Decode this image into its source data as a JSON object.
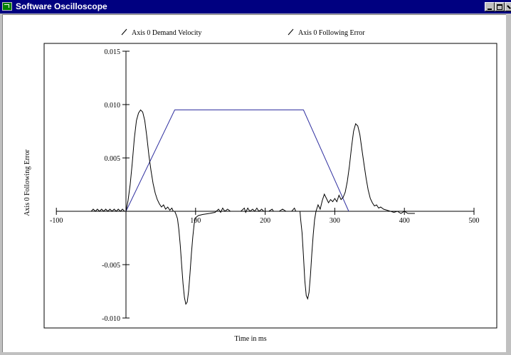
{
  "window": {
    "title": "Software Oscilloscope",
    "icon": "oscilloscope-app-icon",
    "controls": [
      "minimize-icon",
      "maximize-icon",
      "close-icon"
    ]
  },
  "chart_data": {
    "type": "line",
    "title": "",
    "xlabel": "Time in ms",
    "ylabel": "Axis 0 Following Error",
    "xlim": [
      -100,
      500
    ],
    "ylim": [
      -0.01,
      0.015
    ],
    "x_ticks": [
      -100,
      100,
      200,
      300,
      400,
      500
    ],
    "x_tick_labels": [
      "-100",
      "100",
      "200",
      "300",
      "400",
      "500"
    ],
    "y_ticks": [
      0.015,
      0.01,
      0.005,
      -0.005,
      -0.01
    ],
    "y_tick_labels": [
      "0.015",
      "0.010",
      "0.005",
      "-0.005",
      "-0.010"
    ],
    "legend_position": "top",
    "grid": false,
    "series": [
      {
        "name": "Axis 0 Demand Velocity",
        "color": "#3030a0",
        "points": [
          [
            0,
            0
          ],
          [
            70,
            0.0095
          ],
          [
            255,
            0.0095
          ],
          [
            320,
            0
          ]
        ]
      },
      {
        "name": "Axis 0 Following Error",
        "color": "#000000",
        "points": [
          [
            -50,
            0
          ],
          [
            -47,
            0.0002
          ],
          [
            -44,
            0
          ],
          [
            -41,
            0.0002
          ],
          [
            -38,
            0
          ],
          [
            -35,
            0.0002
          ],
          [
            -32,
            0
          ],
          [
            -29,
            0.0002
          ],
          [
            -26,
            0
          ],
          [
            -23,
            0.0002
          ],
          [
            -20,
            0
          ],
          [
            -17,
            0.0002
          ],
          [
            -14,
            0
          ],
          [
            -11,
            0.0002
          ],
          [
            -8,
            0
          ],
          [
            -5,
            0.0002
          ],
          [
            -2,
            0
          ],
          [
            0,
            0
          ],
          [
            3,
            0.001
          ],
          [
            6,
            0.0025
          ],
          [
            9,
            0.0045
          ],
          [
            12,
            0.0068
          ],
          [
            15,
            0.0085
          ],
          [
            18,
            0.0092
          ],
          [
            21,
            0.0095
          ],
          [
            24,
            0.0093
          ],
          [
            27,
            0.0085
          ],
          [
            30,
            0.007
          ],
          [
            33,
            0.0052
          ],
          [
            36,
            0.0038
          ],
          [
            39,
            0.0026
          ],
          [
            42,
            0.0017
          ],
          [
            45,
            0.0011
          ],
          [
            48,
            0.0007
          ],
          [
            51,
            0.0004
          ],
          [
            54,
            0.0006
          ],
          [
            57,
            0.0002
          ],
          [
            60,
            0.0004
          ],
          [
            63,
            0.0001
          ],
          [
            66,
            0.0003
          ],
          [
            68,
            0
          ],
          [
            70,
            0
          ],
          [
            72,
            -0.0003
          ],
          [
            74,
            -0.0007
          ],
          [
            76,
            -0.0017
          ],
          [
            78,
            -0.0032
          ],
          [
            80,
            -0.005
          ],
          [
            82,
            -0.0068
          ],
          [
            84,
            -0.0081
          ],
          [
            86,
            -0.0087
          ],
          [
            88,
            -0.0085
          ],
          [
            90,
            -0.0075
          ],
          [
            92,
            -0.0058
          ],
          [
            94,
            -0.004
          ],
          [
            96,
            -0.0024
          ],
          [
            98,
            -0.0012
          ],
          [
            100,
            -0.0006
          ],
          [
            104,
            -0.0004
          ],
          [
            110,
            -0.0003
          ],
          [
            120,
            -0.0002
          ],
          [
            128,
            -0.0001
          ],
          [
            133,
            0.0002
          ],
          [
            136,
            -0.0001
          ],
          [
            139,
            0.0003
          ],
          [
            142,
            0
          ],
          [
            146,
            0.0002
          ],
          [
            150,
            0
          ],
          [
            158,
            0
          ],
          [
            165,
            0
          ],
          [
            170,
            0.0003
          ],
          [
            172,
            -0.0001
          ],
          [
            175,
            0.0003
          ],
          [
            178,
            0
          ],
          [
            182,
            0.0002
          ],
          [
            185,
            0
          ],
          [
            188,
            0.0003
          ],
          [
            191,
            0
          ],
          [
            195,
            0.0002
          ],
          [
            198,
            0
          ],
          [
            205,
            0
          ],
          [
            210,
            0.0002
          ],
          [
            212,
            0
          ],
          [
            220,
            0
          ],
          [
            225,
            0.0002
          ],
          [
            230,
            0
          ],
          [
            238,
            0
          ],
          [
            242,
            0.0003
          ],
          [
            244,
            0
          ],
          [
            250,
            0
          ],
          [
            251,
            -0.0008
          ],
          [
            253,
            -0.002
          ],
          [
            255,
            -0.0042
          ],
          [
            257,
            -0.0065
          ],
          [
            259,
            -0.0079
          ],
          [
            261,
            -0.0082
          ],
          [
            263,
            -0.0076
          ],
          [
            265,
            -0.006
          ],
          [
            267,
            -0.004
          ],
          [
            269,
            -0.0022
          ],
          [
            271,
            -0.0008
          ],
          [
            273,
            0
          ],
          [
            276,
            0.0006
          ],
          [
            279,
            0.0002
          ],
          [
            282,
            0.001
          ],
          [
            285,
            0.0016
          ],
          [
            288,
            0.0012
          ],
          [
            291,
            0.0008
          ],
          [
            294,
            0.0011
          ],
          [
            297,
            0.0009
          ],
          [
            300,
            0.0012
          ],
          [
            303,
            0.0009
          ],
          [
            306,
            0.0015
          ],
          [
            309,
            0.0011
          ],
          [
            312,
            0.0013
          ],
          [
            315,
            0.0018
          ],
          [
            318,
            0.0028
          ],
          [
            321,
            0.0042
          ],
          [
            324,
            0.006
          ],
          [
            327,
            0.0075
          ],
          [
            330,
            0.0082
          ],
          [
            333,
            0.008
          ],
          [
            336,
            0.0072
          ],
          [
            339,
            0.0058
          ],
          [
            342,
            0.0044
          ],
          [
            345,
            0.0031
          ],
          [
            348,
            0.002
          ],
          [
            351,
            0.0012
          ],
          [
            354,
            0.0008
          ],
          [
            357,
            0.0005
          ],
          [
            360,
            0.0006
          ],
          [
            363,
            0.0003
          ],
          [
            366,
            0.0004
          ],
          [
            370,
            0.0002
          ],
          [
            375,
            0.0001
          ],
          [
            380,
            0
          ],
          [
            385,
            -0.0001
          ],
          [
            390,
            0
          ],
          [
            395,
            -0.0002
          ],
          [
            400,
            0
          ],
          [
            405,
            -0.0002
          ],
          [
            415,
            -0.0002
          ]
        ]
      }
    ]
  }
}
